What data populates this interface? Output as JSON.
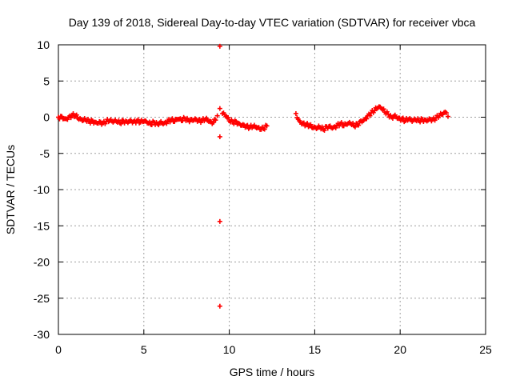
{
  "chart_data": {
    "type": "scatter",
    "title": "Day 139 of 2018, Sidereal Day-to-day VTEC variation (SDTVAR) for receiver vbca",
    "xlabel": "GPS time / hours",
    "ylabel": "SDTVAR / TECUs",
    "xlim": [
      0,
      25
    ],
    "ylim": [
      -30,
      10
    ],
    "xticks": [
      0,
      5,
      10,
      15,
      20,
      25
    ],
    "yticks": [
      10,
      5,
      0,
      -5,
      -10,
      -15,
      -20,
      -25,
      -30
    ],
    "xtick_labels": [
      "0",
      "5",
      "10",
      "15",
      "20",
      "25"
    ],
    "ytick_labels": [
      "10",
      "5",
      "0",
      "-5",
      "-10",
      "-15",
      "-20",
      "-25",
      "-30"
    ],
    "grid": true,
    "series_color": "#ff0000",
    "series": [
      {
        "name": "SDTVAR",
        "x": [
          0.0,
          0.2,
          0.4,
          0.6,
          0.8,
          1.0,
          1.2,
          1.4,
          1.6,
          1.8,
          2.0,
          2.2,
          2.4,
          2.6,
          2.8,
          3.0,
          3.2,
          3.4,
          3.6,
          3.8,
          4.0,
          4.2,
          4.4,
          4.6,
          4.8,
          5.0,
          5.2,
          5.4,
          5.6,
          5.8,
          6.0,
          6.2,
          6.4,
          6.6,
          6.8,
          7.0,
          7.2,
          7.4,
          7.6,
          7.8,
          8.0,
          8.2,
          8.4,
          8.6,
          8.8,
          9.0,
          9.2,
          9.3,
          9.45,
          9.45,
          9.45,
          9.45,
          9.45,
          9.6,
          9.8,
          10.0,
          10.2,
          10.4,
          10.6,
          10.8,
          11.0,
          11.2,
          11.4,
          11.6,
          11.8,
          12.0,
          12.2,
          13.9,
          14.1,
          14.3,
          14.5,
          14.7,
          14.9,
          15.1,
          15.3,
          15.5,
          15.7,
          15.9,
          16.1,
          16.3,
          16.5,
          16.7,
          16.9,
          17.1,
          17.3,
          17.5,
          17.7,
          17.9,
          18.1,
          18.3,
          18.5,
          18.7,
          18.9,
          19.1,
          19.3,
          19.5,
          19.7,
          19.9,
          20.1,
          20.3,
          20.5,
          20.7,
          20.9,
          21.1,
          21.3,
          21.5,
          21.7,
          21.9,
          22.1,
          22.3,
          22.5,
          22.7,
          22.8
        ],
        "y": [
          0.0,
          0.1,
          -0.2,
          0.0,
          0.3,
          0.2,
          -0.3,
          -0.5,
          -0.4,
          -0.6,
          -0.5,
          -0.7,
          -0.6,
          -0.8,
          -0.6,
          -0.5,
          -0.7,
          -0.6,
          -0.8,
          -0.5,
          -0.6,
          -0.4,
          -0.6,
          -0.5,
          -0.7,
          -0.6,
          -0.8,
          -1.0,
          -0.7,
          -0.9,
          -0.6,
          -0.8,
          -0.5,
          -0.4,
          -0.6,
          -0.3,
          -0.5,
          -0.2,
          -0.4,
          -0.3,
          -0.2,
          -0.4,
          -0.5,
          -0.3,
          -0.6,
          -0.9,
          -0.4,
          0.2,
          9.8,
          1.2,
          -2.7,
          -14.4,
          -26.1,
          0.5,
          0.1,
          -0.5,
          -0.7,
          -0.6,
          -0.9,
          -1.0,
          -1.2,
          -1.4,
          -1.3,
          -1.5,
          -1.7,
          -1.6,
          -1.2,
          0.5,
          -0.5,
          -0.8,
          -1.0,
          -1.2,
          -1.5,
          -1.6,
          -1.4,
          -1.7,
          -1.3,
          -1.2,
          -1.4,
          -1.1,
          -0.9,
          -1.2,
          -1.0,
          -0.9,
          -1.2,
          -1.0,
          -0.5,
          -0.3,
          0.2,
          0.6,
          0.9,
          1.3,
          1.2,
          0.7,
          0.4,
          0.0,
          0.3,
          -0.1,
          -0.2,
          -0.5,
          -0.3,
          -0.6,
          -0.4,
          -0.5,
          -0.3,
          -0.4,
          -0.2,
          -0.3,
          -0.1,
          0.2,
          0.4,
          0.6,
          0.1
        ]
      }
    ]
  }
}
